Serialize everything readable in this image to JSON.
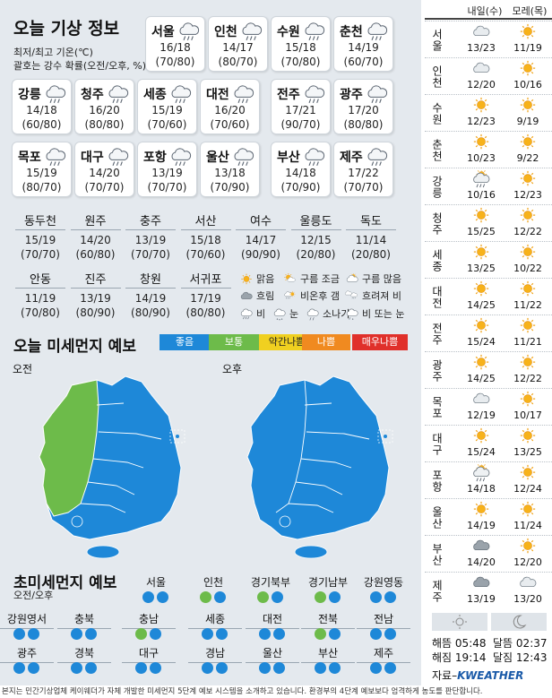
{
  "header": {
    "title": "오늘 기상 정보",
    "subtitle_line1": "최저/최고 기온(℃)",
    "subtitle_line2": "괄호는 강수 확률(오전/오후, %)"
  },
  "main_cities": [
    {
      "name": "서울",
      "temp": "16/18",
      "prob": "(70/80)",
      "icon": "rain-cloud"
    },
    {
      "name": "인천",
      "temp": "14/17",
      "prob": "(80/70)",
      "icon": "rain-cloud"
    },
    {
      "name": "수원",
      "temp": "15/18",
      "prob": "(70/80)",
      "icon": "rain-cloud"
    },
    {
      "name": "춘천",
      "temp": "14/19",
      "prob": "(60/70)",
      "icon": "rain-cloud"
    },
    {
      "name": "강릉",
      "temp": "14/18",
      "prob": "(60/80)",
      "icon": "rain-cloud"
    },
    {
      "name": "청주",
      "temp": "16/20",
      "prob": "(80/80)",
      "icon": "rain-cloud"
    },
    {
      "name": "세종",
      "temp": "15/19",
      "prob": "(70/60)",
      "icon": "rain-cloud"
    },
    {
      "name": "대전",
      "temp": "16/20",
      "prob": "(70/60)",
      "icon": "rain-cloud"
    },
    {
      "name": "전주",
      "temp": "17/21",
      "prob": "(90/70)",
      "icon": "rain-cloud"
    },
    {
      "name": "광주",
      "temp": "17/20",
      "prob": "(80/80)",
      "icon": "rain-cloud"
    },
    {
      "name": "목포",
      "temp": "15/19",
      "prob": "(80/70)",
      "icon": "rain-cloud"
    },
    {
      "name": "대구",
      "temp": "14/20",
      "prob": "(70/70)",
      "icon": "rain-cloud"
    },
    {
      "name": "포항",
      "temp": "13/19",
      "prob": "(70/70)",
      "icon": "rain-cloud"
    },
    {
      "name": "울산",
      "temp": "13/18",
      "prob": "(70/90)",
      "icon": "rain-cloud"
    },
    {
      "name": "부산",
      "temp": "14/18",
      "prob": "(70/90)",
      "icon": "rain-cloud"
    },
    {
      "name": "제주",
      "temp": "17/22",
      "prob": "(70/70)",
      "icon": "rain-cloud"
    }
  ],
  "small_cities": [
    {
      "name": "동두천",
      "temp": "15/19",
      "prob": "(70/70)"
    },
    {
      "name": "원주",
      "temp": "14/20",
      "prob": "(60/80)"
    },
    {
      "name": "충주",
      "temp": "13/19",
      "prob": "(70/70)"
    },
    {
      "name": "서산",
      "temp": "15/18",
      "prob": "(70/60)"
    },
    {
      "name": "여수",
      "temp": "14/17",
      "prob": "(90/90)"
    },
    {
      "name": "울릉도",
      "temp": "12/15",
      "prob": "(20/80)"
    },
    {
      "name": "독도",
      "temp": "11/14",
      "prob": "(20/80)"
    },
    {
      "name": "안동",
      "temp": "11/19",
      "prob": "(70/80)"
    },
    {
      "name": "진주",
      "temp": "13/19",
      "prob": "(80/90)"
    },
    {
      "name": "창원",
      "temp": "14/19",
      "prob": "(80/90)"
    },
    {
      "name": "서귀포",
      "temp": "17/19",
      "prob": "(80/80)"
    }
  ],
  "weather_legend": [
    {
      "label": "맑음",
      "icon": "sun"
    },
    {
      "label": "구름 조금",
      "icon": "sun-cloud"
    },
    {
      "label": "구름 많음",
      "icon": "cloud-sun"
    },
    {
      "label": "흐림",
      "icon": "dark-cloud"
    },
    {
      "label": "비온후 갬",
      "icon": "rain-then-sun"
    },
    {
      "label": "흐려져 비",
      "icon": "cloud-then-rain"
    },
    {
      "label": "비",
      "icon": "rain"
    },
    {
      "label": "눈",
      "icon": "snow"
    },
    {
      "label": "소나기",
      "icon": "shower"
    },
    {
      "label": "비 또는 눈",
      "icon": "rain-or-snow"
    }
  ],
  "dust": {
    "title": "오늘 미세먼지 예보",
    "levels": [
      {
        "label": "좋음",
        "color": "#1e88d8"
      },
      {
        "label": "보통",
        "color": "#6dbb4a"
      },
      {
        "label": "약간나쁨",
        "color": "#f0d020"
      },
      {
        "label": "나쁨",
        "color": "#f08a20"
      },
      {
        "label": "매우나쁨",
        "color": "#e0302a"
      }
    ],
    "am_label": "오전",
    "pm_label": "오후"
  },
  "ultrafine": {
    "title": "초미세먼지 예보",
    "subtitle": "오전/오후",
    "regions": [
      {
        "name": "서울",
        "am": "good",
        "pm": "good"
      },
      {
        "name": "인천",
        "am": "normal",
        "pm": "good"
      },
      {
        "name": "경기북부",
        "am": "normal",
        "pm": "good"
      },
      {
        "name": "경기남부",
        "am": "normal",
        "pm": "good"
      },
      {
        "name": "강원영동",
        "am": "good",
        "pm": "good"
      },
      {
        "name": "강원영서",
        "am": "good",
        "pm": "good"
      },
      {
        "name": "충북",
        "am": "good",
        "pm": "good"
      },
      {
        "name": "충남",
        "am": "normal",
        "pm": "good"
      },
      {
        "name": "세종",
        "am": "good",
        "pm": "good"
      },
      {
        "name": "대전",
        "am": "good",
        "pm": "good"
      },
      {
        "name": "전북",
        "am": "normal",
        "pm": "good"
      },
      {
        "name": "전남",
        "am": "good",
        "pm": "good"
      },
      {
        "name": "광주",
        "am": "good",
        "pm": "good"
      },
      {
        "name": "경북",
        "am": "good",
        "pm": "good"
      },
      {
        "name": "대구",
        "am": "good",
        "pm": "good"
      },
      {
        "name": "경남",
        "am": "good",
        "pm": "good"
      },
      {
        "name": "울산",
        "am": "good",
        "pm": "good"
      },
      {
        "name": "부산",
        "am": "good",
        "pm": "good"
      },
      {
        "name": "제주",
        "am": "good",
        "pm": "good"
      }
    ],
    "colors": {
      "good": "#1e88d8",
      "normal": "#6dbb4a"
    }
  },
  "forecast": {
    "col1": "내일(수)",
    "col2": "모레(목)",
    "rows": [
      {
        "city": "서울",
        "d1": "13/23",
        "i1": "cloud",
        "d2": "11/19",
        "i2": "sun"
      },
      {
        "city": "인천",
        "d1": "12/20",
        "i1": "cloud",
        "d2": "10/16",
        "i2": "sun"
      },
      {
        "city": "수원",
        "d1": "12/23",
        "i1": "sun",
        "d2": "9/19",
        "i2": "sun"
      },
      {
        "city": "춘천",
        "d1": "10/23",
        "i1": "sun",
        "d2": "9/22",
        "i2": "sun"
      },
      {
        "city": "강릉",
        "d1": "10/16",
        "i1": "rain-sun",
        "d2": "12/23",
        "i2": "sun"
      },
      {
        "city": "청주",
        "d1": "15/25",
        "i1": "sun",
        "d2": "12/22",
        "i2": "sun"
      },
      {
        "city": "세종",
        "d1": "13/25",
        "i1": "sun",
        "d2": "10/22",
        "i2": "sun"
      },
      {
        "city": "대전",
        "d1": "14/25",
        "i1": "sun",
        "d2": "11/22",
        "i2": "sun"
      },
      {
        "city": "전주",
        "d1": "15/24",
        "i1": "sun",
        "d2": "11/21",
        "i2": "sun"
      },
      {
        "city": "광주",
        "d1": "14/25",
        "i1": "sun",
        "d2": "12/22",
        "i2": "sun"
      },
      {
        "city": "목포",
        "d1": "12/19",
        "i1": "cloud",
        "d2": "10/17",
        "i2": "sun"
      },
      {
        "city": "대구",
        "d1": "15/24",
        "i1": "sun",
        "d2": "13/25",
        "i2": "sun"
      },
      {
        "city": "포항",
        "d1": "14/18",
        "i1": "rain-sun",
        "d2": "12/24",
        "i2": "sun"
      },
      {
        "city": "울산",
        "d1": "14/19",
        "i1": "sun",
        "d2": "11/24",
        "i2": "sun"
      },
      {
        "city": "부산",
        "d1": "14/20",
        "i1": "dark-cloud",
        "d2": "12/20",
        "i2": "sun"
      },
      {
        "city": "제주",
        "d1": "13/19",
        "i1": "dark-cloud",
        "d2": "13/20",
        "i2": "cloud"
      }
    ]
  },
  "sun_moon": {
    "sunrise_label": "해뜸",
    "sunrise": "05:48",
    "sunset_label": "해짐",
    "sunset": "19:14",
    "moonrise_label": "달뜸",
    "moonrise": "02:37",
    "moonset_label": "달짐",
    "moonset": "12:43"
  },
  "source": {
    "prefix": "자료–",
    "brand": "KWEATHER"
  },
  "footer": "본지는 민간기상업체 케이웨더가 자체 개발한 미세먼지 5단계 예보 시스템을 소개하고 있습니다. 환경부의 4단계 예보보다 엄격하게 농도를 판단합니다."
}
